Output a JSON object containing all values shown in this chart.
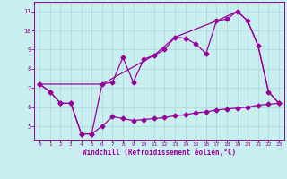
{
  "xlabel": "Windchill (Refroidissement éolien,°C)",
  "background_color": "#c8eef0",
  "line_color": "#990099",
  "grid_color": "#aad8d8",
  "xlim": [
    -0.5,
    23.5
  ],
  "ylim": [
    4.3,
    11.5
  ],
  "yticks": [
    5,
    6,
    7,
    8,
    9,
    10,
    11
  ],
  "xticks": [
    0,
    1,
    2,
    3,
    4,
    5,
    6,
    7,
    8,
    9,
    10,
    11,
    12,
    13,
    14,
    15,
    16,
    17,
    18,
    19,
    20,
    21,
    22,
    23
  ],
  "series1_x": [
    0,
    1,
    2,
    3,
    4,
    5,
    6,
    7,
    8,
    9,
    10,
    11,
    12,
    13,
    14,
    15,
    16,
    17,
    18,
    19,
    20,
    21,
    22,
    23
  ],
  "series1_y": [
    7.2,
    6.8,
    6.2,
    6.2,
    4.6,
    4.6,
    5.0,
    5.5,
    5.4,
    5.3,
    5.35,
    5.4,
    5.45,
    5.55,
    5.6,
    5.7,
    5.75,
    5.85,
    5.9,
    5.95,
    6.0,
    6.1,
    6.15,
    6.2
  ],
  "series2_x": [
    0,
    1,
    2,
    3,
    4,
    5,
    6,
    7,
    8,
    9,
    10,
    11,
    12,
    13,
    14,
    15,
    16,
    17,
    18,
    19,
    20,
    21,
    22,
    23
  ],
  "series2_y": [
    7.2,
    6.8,
    6.2,
    6.2,
    4.6,
    4.6,
    7.2,
    7.3,
    8.6,
    7.3,
    8.5,
    8.7,
    9.0,
    9.65,
    9.6,
    9.3,
    8.8,
    10.5,
    10.6,
    11.0,
    10.5,
    9.2,
    6.8,
    6.2
  ],
  "series3_x": [
    0,
    6,
    11,
    13,
    17,
    19,
    20,
    21,
    22,
    23
  ],
  "series3_y": [
    7.2,
    7.2,
    8.7,
    9.65,
    10.5,
    11.0,
    10.5,
    9.2,
    6.8,
    6.2
  ],
  "marker": "D",
  "markersize": 2.5,
  "linewidth": 0.9
}
